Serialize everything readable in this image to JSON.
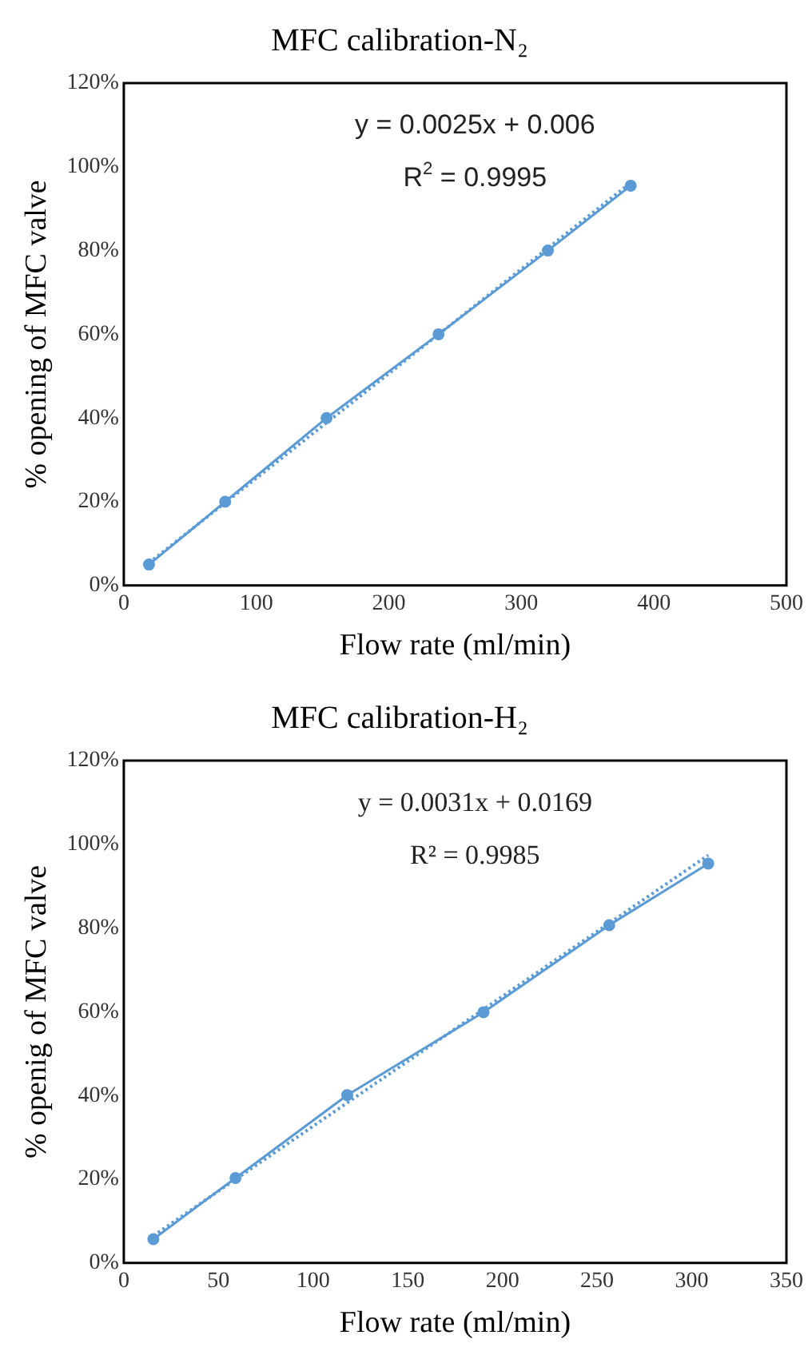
{
  "chart_data": [
    {
      "type": "line",
      "title": "MFC calibration-N₂",
      "xlabel": "Flow rate (ml/min)",
      "ylabel": "% opening of MFC valve",
      "annotations": [
        "y = 0.0025x + 0.006",
        "R$^{2}$ = 0.9995"
      ],
      "series": [
        {
          "type": "line",
          "color": "#5b9bd5",
          "marker": "circle",
          "line_style": "solid",
          "x": [
            19,
            76.5,
            153,
            237.5,
            320,
            382.5
          ],
          "values": [
            5,
            20,
            40,
            60,
            80,
            95.5
          ]
        },
        {
          "type": "line",
          "color": "#5b9bd5",
          "marker": "none",
          "line_style": "dotted",
          "x": [
            19,
            382.5
          ],
          "values": [
            5.4,
            96.2
          ]
        }
      ],
      "xlim": [
        0,
        500
      ],
      "xticks": [
        0,
        100,
        200,
        300,
        400,
        500
      ],
      "ylim": [
        0,
        120
      ],
      "yticks": [
        {
          "value": 0,
          "label": "0%"
        },
        {
          "value": 20,
          "label": "20%"
        },
        {
          "value": 40,
          "label": "40%"
        },
        {
          "value": 60,
          "label": "60%"
        },
        {
          "value": 80,
          "label": "80%"
        },
        {
          "value": 100,
          "label": "100%"
        },
        {
          "value": 120,
          "label": "120%"
        }
      ],
      "grid": false,
      "legend": false
    },
    {
      "type": "line",
      "title": "MFC calibration-H₂",
      "xlabel": "Flow rate (ml/min)",
      "ylabel": "% openig of MFC valve",
      "annotations": [
        "y = 0.0031x + 0.0169",
        "R² = 0.9985"
      ],
      "series": [
        {
          "type": "line",
          "color": "#5b9bd5",
          "marker": "circle",
          "line_style": "solid",
          "x": [
            15.6,
            59,
            118,
            190,
            256.4,
            308.7
          ],
          "values": [
            5.7,
            20.3,
            40.1,
            59.9,
            80.7,
            95.4
          ]
        },
        {
          "type": "line",
          "color": "#5b9bd5",
          "marker": "none",
          "line_style": "dotted",
          "x": [
            15.6,
            308.7
          ],
          "values": [
            6.5,
            97.4
          ]
        }
      ],
      "xlim": [
        0,
        350
      ],
      "xticks": [
        0,
        50,
        100,
        150,
        200,
        250,
        300,
        350
      ],
      "ylim": [
        0,
        120
      ],
      "yticks": [
        {
          "value": 0,
          "label": "0%"
        },
        {
          "value": 20,
          "label": "20%"
        },
        {
          "value": 40,
          "label": "40%"
        },
        {
          "value": 60,
          "label": "60%"
        },
        {
          "value": 80,
          "label": "80%"
        },
        {
          "value": 100,
          "label": "100%"
        },
        {
          "value": 120,
          "label": "120%"
        }
      ],
      "grid": false,
      "legend": false
    }
  ]
}
